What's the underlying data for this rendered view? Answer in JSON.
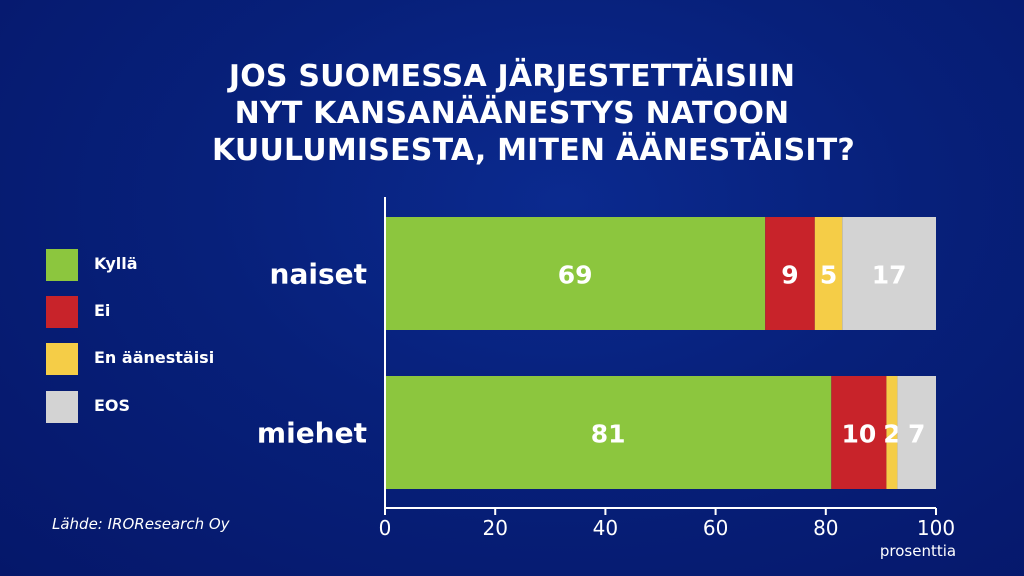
{
  "title_lines": [
    "JOS SUOMESSA JÄRJESTETTÄISIIN",
    "NYT KANSANÄÄNESTYS NATOON",
    "KUULUMISESTA, MITEN ÄÄNESTÄISIT?"
  ],
  "source": "Lähde: IROResearch Oy",
  "colors": {
    "kylla": "#8cc63e",
    "ei": "#c8232a",
    "en_aanestaisi": "#f5cd47",
    "eos": "#d3d3d3"
  },
  "chart_data": {
    "type": "bar",
    "orientation": "horizontal",
    "stacked": true,
    "categories": [
      "naiset",
      "miehet"
    ],
    "series": [
      {
        "name": "Kyllä",
        "values": [
          69,
          81
        ],
        "color": "#8cc63e"
      },
      {
        "name": "Ei",
        "values": [
          9,
          10
        ],
        "color": "#c8232a"
      },
      {
        "name": "En äänestäisi",
        "values": [
          5,
          2
        ],
        "color": "#f5cd47"
      },
      {
        "name": "EOS",
        "values": [
          17,
          7
        ],
        "color": "#d3d3d3"
      }
    ],
    "xlim": [
      0,
      100
    ],
    "xticks": [
      0,
      20,
      40,
      60,
      80,
      100
    ],
    "xlabel": "prosenttia",
    "legend": "left",
    "grid": false
  }
}
